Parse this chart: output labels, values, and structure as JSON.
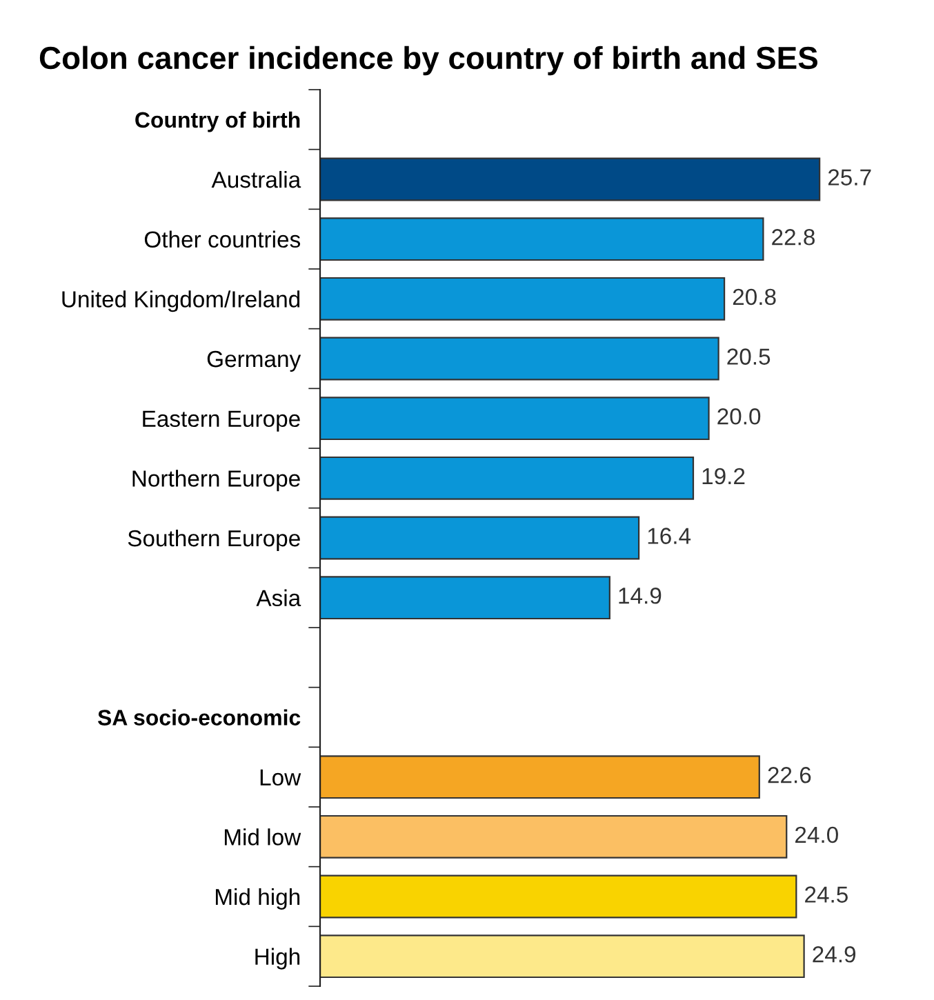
{
  "chart_data": {
    "type": "bar",
    "orientation": "horizontal",
    "title": "Colon cancer incidence by country of birth and SES",
    "categories": [
      "Country of birth",
      "Australia",
      "Other countries",
      "United Kingdom/Ireland",
      "Germany",
      "Eastern Europe",
      "Northern Europe",
      "Southern Europe",
      "Asia",
      null,
      "SA socio-economic",
      "Low",
      "Mid low",
      "Mid high",
      "High"
    ],
    "values": [
      null,
      25.7,
      22.8,
      20.8,
      20.5,
      20.0,
      19.2,
      16.4,
      14.9,
      null,
      null,
      22.6,
      24.0,
      24.5,
      24.9
    ],
    "colors": [
      null,
      "#004a87",
      "#0a96d8",
      "#0a96d8",
      "#0a96d8",
      "#0a96d8",
      "#0a96d8",
      "#0a96d8",
      "#0a96d8",
      null,
      null,
      "#f5a623",
      "#fbbf63",
      "#f9d300",
      "#fde98a"
    ],
    "value_labels": [
      null,
      "25.7",
      "22.8",
      "20.8",
      "20.5",
      "20.0",
      "19.2",
      "16.4",
      "14.9",
      null,
      null,
      "22.6",
      "24.0",
      "24.5",
      "24.9"
    ],
    "legend": false,
    "grid": false
  }
}
